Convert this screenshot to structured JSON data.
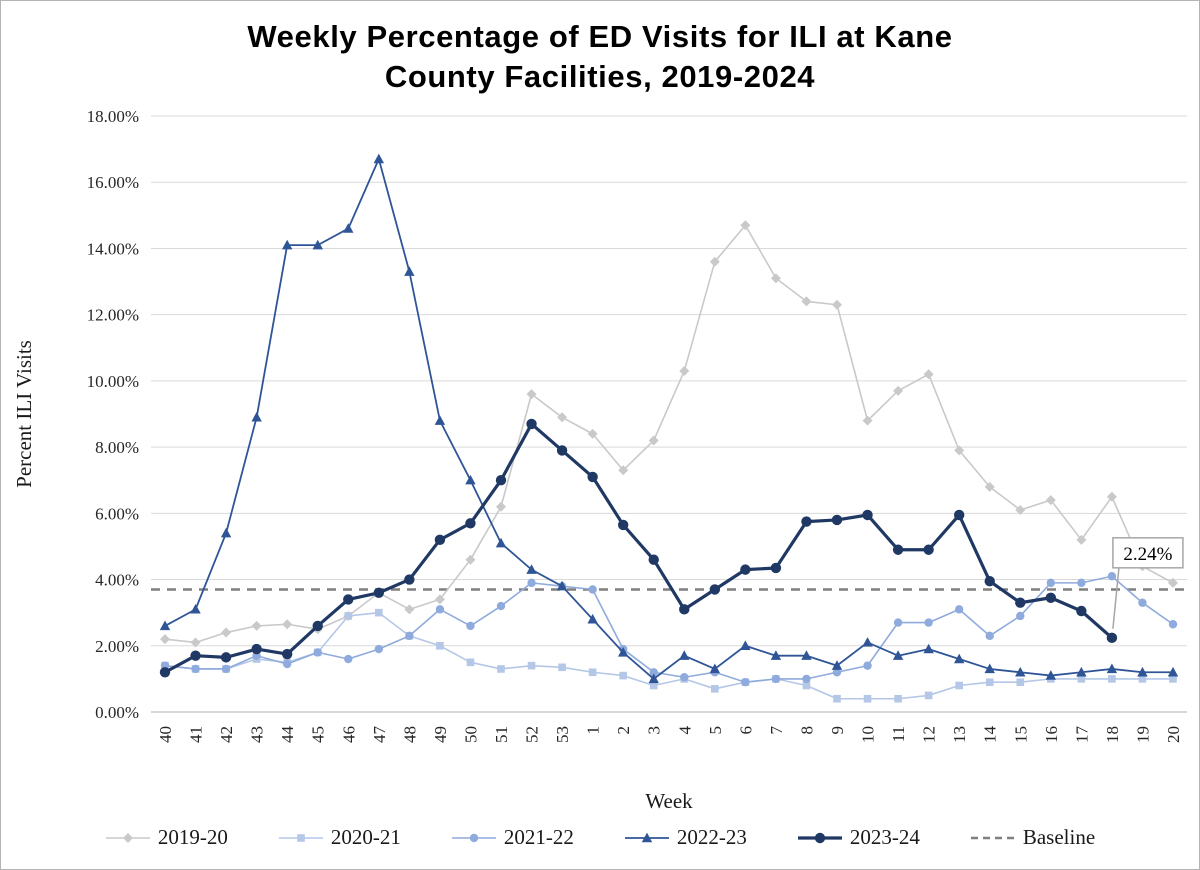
{
  "title_line1": "Weekly Percentage of ED Visits for ILI at Kane",
  "title_line2": "County Facilities, 2019-2024",
  "chart_data": {
    "type": "line",
    "title": "Weekly Percentage of ED Visits for ILI at Kane County Facilities, 2019-2024",
    "xlabel": "Week",
    "ylabel": "Percent ILI Visits",
    "ylim": [
      0,
      18
    ],
    "y_tick_step": 2,
    "y_tick_suffix": "%",
    "grid": "horizontal",
    "legend_position": "bottom",
    "categories": [
      "40",
      "41",
      "42",
      "43",
      "44",
      "45",
      "46",
      "47",
      "48",
      "49",
      "50",
      "51",
      "52",
      "53",
      "1",
      "2",
      "3",
      "4",
      "5",
      "6",
      "7",
      "8",
      "9",
      "10",
      "11",
      "12",
      "13",
      "14",
      "15",
      "16",
      "17",
      "18",
      "19",
      "20"
    ],
    "series": [
      {
        "name": "2019-20",
        "color": "#c9c9c9",
        "marker": "diamond",
        "width": 1.6,
        "values": [
          2.2,
          2.1,
          2.4,
          2.6,
          2.65,
          2.5,
          2.9,
          3.6,
          3.1,
          3.4,
          4.6,
          6.2,
          9.6,
          8.9,
          8.4,
          7.3,
          8.2,
          10.3,
          13.6,
          14.7,
          13.1,
          12.4,
          12.3,
          8.8,
          9.7,
          10.2,
          7.9,
          6.8,
          6.1,
          6.4,
          5.2,
          6.5,
          4.4,
          3.9
        ]
      },
      {
        "name": "2020-21",
        "color": "#b4c7e7",
        "marker": "square",
        "width": 1.6,
        "values": [
          1.4,
          1.3,
          1.3,
          1.6,
          1.5,
          1.8,
          2.9,
          3.0,
          2.3,
          2.0,
          1.5,
          1.3,
          1.4,
          1.35,
          1.2,
          1.1,
          0.8,
          1.0,
          0.7,
          0.9,
          1.0,
          0.8,
          0.4,
          0.4,
          0.4,
          0.5,
          0.8,
          0.9,
          0.9,
          1.0,
          1.0,
          1.0,
          1.0,
          1.0
        ]
      },
      {
        "name": "2021-22",
        "color": "#8faadc",
        "marker": "circle",
        "width": 1.6,
        "values": [
          1.4,
          1.3,
          1.3,
          1.7,
          1.45,
          1.8,
          1.6,
          1.9,
          2.3,
          3.1,
          2.6,
          3.2,
          3.9,
          3.8,
          3.7,
          1.9,
          1.2,
          1.05,
          1.2,
          0.9,
          1.0,
          1.0,
          1.2,
          1.4,
          2.7,
          2.7,
          3.1,
          2.3,
          2.9,
          3.9,
          3.9,
          4.1,
          3.3,
          2.65
        ]
      },
      {
        "name": "2022-23",
        "color": "#2f5597",
        "marker": "triangle",
        "width": 1.8,
        "values": [
          2.6,
          3.1,
          5.4,
          8.9,
          14.1,
          14.1,
          14.6,
          16.7,
          13.3,
          8.8,
          7.0,
          5.1,
          4.3,
          3.8,
          2.8,
          1.8,
          1.0,
          1.7,
          1.3,
          2.0,
          1.7,
          1.7,
          1.4,
          2.1,
          1.7,
          1.9,
          1.6,
          1.3,
          1.2,
          1.1,
          1.2,
          1.3,
          1.2,
          1.2
        ]
      },
      {
        "name": "2023-24",
        "color": "#203864",
        "marker": "circle-bold",
        "width": 3.2,
        "values": [
          1.2,
          1.7,
          1.65,
          1.9,
          1.75,
          2.6,
          3.4,
          3.6,
          4.0,
          5.2,
          5.7,
          7.0,
          8.7,
          7.9,
          7.1,
          5.65,
          4.6,
          3.1,
          3.7,
          4.3,
          4.35,
          5.75,
          5.8,
          5.95,
          4.9,
          4.9,
          5.95,
          3.95,
          3.3,
          3.45,
          3.05,
          2.24,
          null,
          null
        ]
      }
    ],
    "baseline": {
      "label": "Baseline",
      "value": 3.7,
      "color": "#7f7f7f"
    },
    "annotation": {
      "text": "2.24%",
      "series": "2023-24",
      "x_index": 31,
      "value": 2.24
    }
  }
}
